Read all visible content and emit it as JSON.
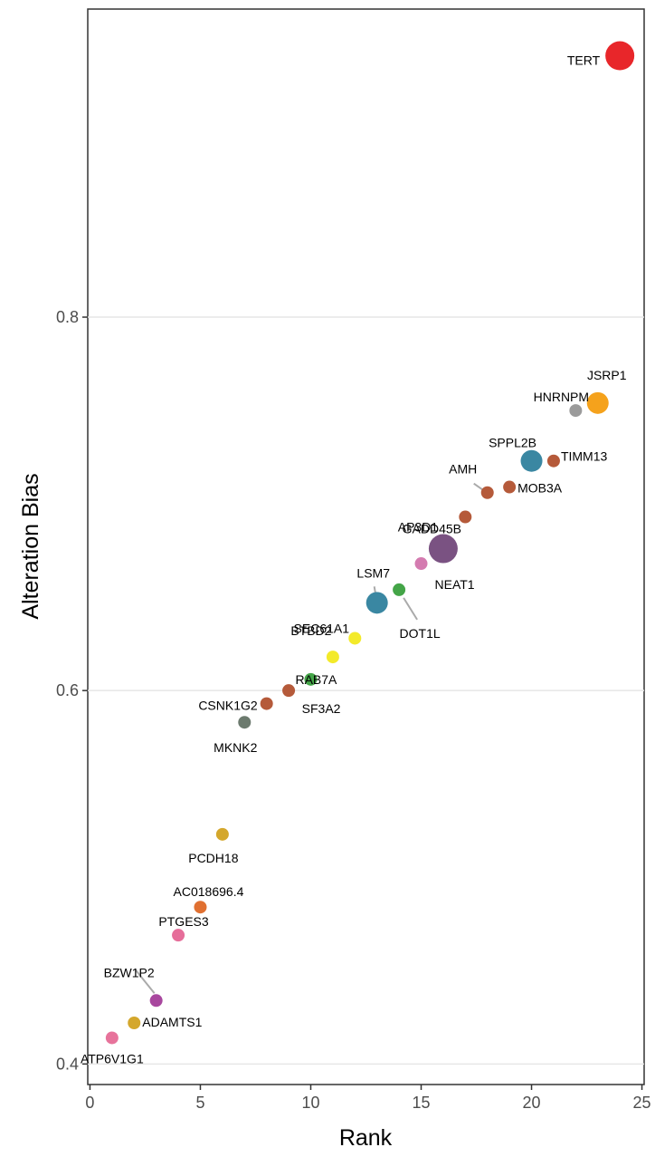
{
  "chart_data": {
    "type": "scatter",
    "xlabel": "Rank",
    "ylabel": "Alteration Bias",
    "xlim": [
      -0.1,
      25.1
    ],
    "ylim": [
      0.389,
      0.965
    ],
    "xticks": [
      0,
      5,
      10,
      15,
      20,
      25
    ],
    "xtick_labels": [
      "0",
      "5",
      "10",
      "15",
      "20",
      "25"
    ],
    "yticks": [
      0.4,
      0.6,
      0.8
    ],
    "ytick_labels": [
      "0.4",
      "0.6",
      "0.8"
    ],
    "grid": "horizontal major",
    "points": [
      {
        "label": "ATP6V1G1",
        "x": 1,
        "y": 0.414,
        "color": "#E7739B",
        "size": 1
      },
      {
        "label": "ADAMTS1",
        "x": 2,
        "y": 0.422,
        "color": "#D4A72C",
        "size": 1
      },
      {
        "label": "BZW1P2",
        "x": 3,
        "y": 0.434,
        "color": "#A8479E",
        "size": 1
      },
      {
        "label": "PTGES3",
        "x": 4,
        "y": 0.469,
        "color": "#E66E9A",
        "size": 1
      },
      {
        "label": "AC018696.4",
        "x": 5,
        "y": 0.484,
        "color": "#E07031",
        "size": 1
      },
      {
        "label": "PCDH18",
        "x": 6,
        "y": 0.523,
        "color": "#D4A72C",
        "size": 1
      },
      {
        "label": "MKNK2",
        "x": 7,
        "y": 0.583,
        "color": "#6C7A6E",
        "size": 1
      },
      {
        "label": "CSNK1G2",
        "x": 8,
        "y": 0.593,
        "color": "#B55A3A",
        "size": 1
      },
      {
        "label": "SF3A2",
        "x": 9,
        "y": 0.6,
        "color": "#B55A3A",
        "size": 1
      },
      {
        "label": "RAB7A",
        "x": 10,
        "y": 0.606,
        "color": "#44A548",
        "size": 1
      },
      {
        "label": "BTBD2",
        "x": 11,
        "y": 0.618,
        "color": "#F3EA2A",
        "size": 1
      },
      {
        "label": "SEC61A1",
        "x": 12,
        "y": 0.628,
        "color": "#F3EA2A",
        "size": 1
      },
      {
        "label": "LSM7",
        "x": 13,
        "y": 0.647,
        "color": "#3A87A2",
        "size": 2
      },
      {
        "label": "DOT1L",
        "x": 14,
        "y": 0.654,
        "color": "#44A548",
        "size": 1
      },
      {
        "label": "NEAT1",
        "x": 15,
        "y": 0.668,
        "color": "#D47BB0",
        "size": 1
      },
      {
        "label": "AP3D1",
        "x": 16,
        "y": 0.676,
        "color": "#7A5282",
        "size": 3
      },
      {
        "label": "GADD45B",
        "x": 17,
        "y": 0.693,
        "color": "#B55A3A",
        "size": 1
      },
      {
        "label": "AMH",
        "x": 18,
        "y": 0.706,
        "color": "#B55A3A",
        "size": 1
      },
      {
        "label": "MOB3A",
        "x": 19,
        "y": 0.709,
        "color": "#B55A3A",
        "size": 1
      },
      {
        "label": "SPPL2B",
        "x": 20,
        "y": 0.723,
        "color": "#3A87A2",
        "size": 2
      },
      {
        "label": "TIMM13",
        "x": 21,
        "y": 0.723,
        "color": "#B55A3A",
        "size": 1
      },
      {
        "label": "HNRNPM",
        "x": 22,
        "y": 0.75,
        "color": "#9B9B9B",
        "size": 1
      },
      {
        "label": "JSRP1",
        "x": 23,
        "y": 0.754,
        "color": "#F5A21C",
        "size": 2
      },
      {
        "label": "TERT",
        "x": 24,
        "y": 0.94,
        "color": "#E8262A",
        "size": 3
      }
    ]
  }
}
